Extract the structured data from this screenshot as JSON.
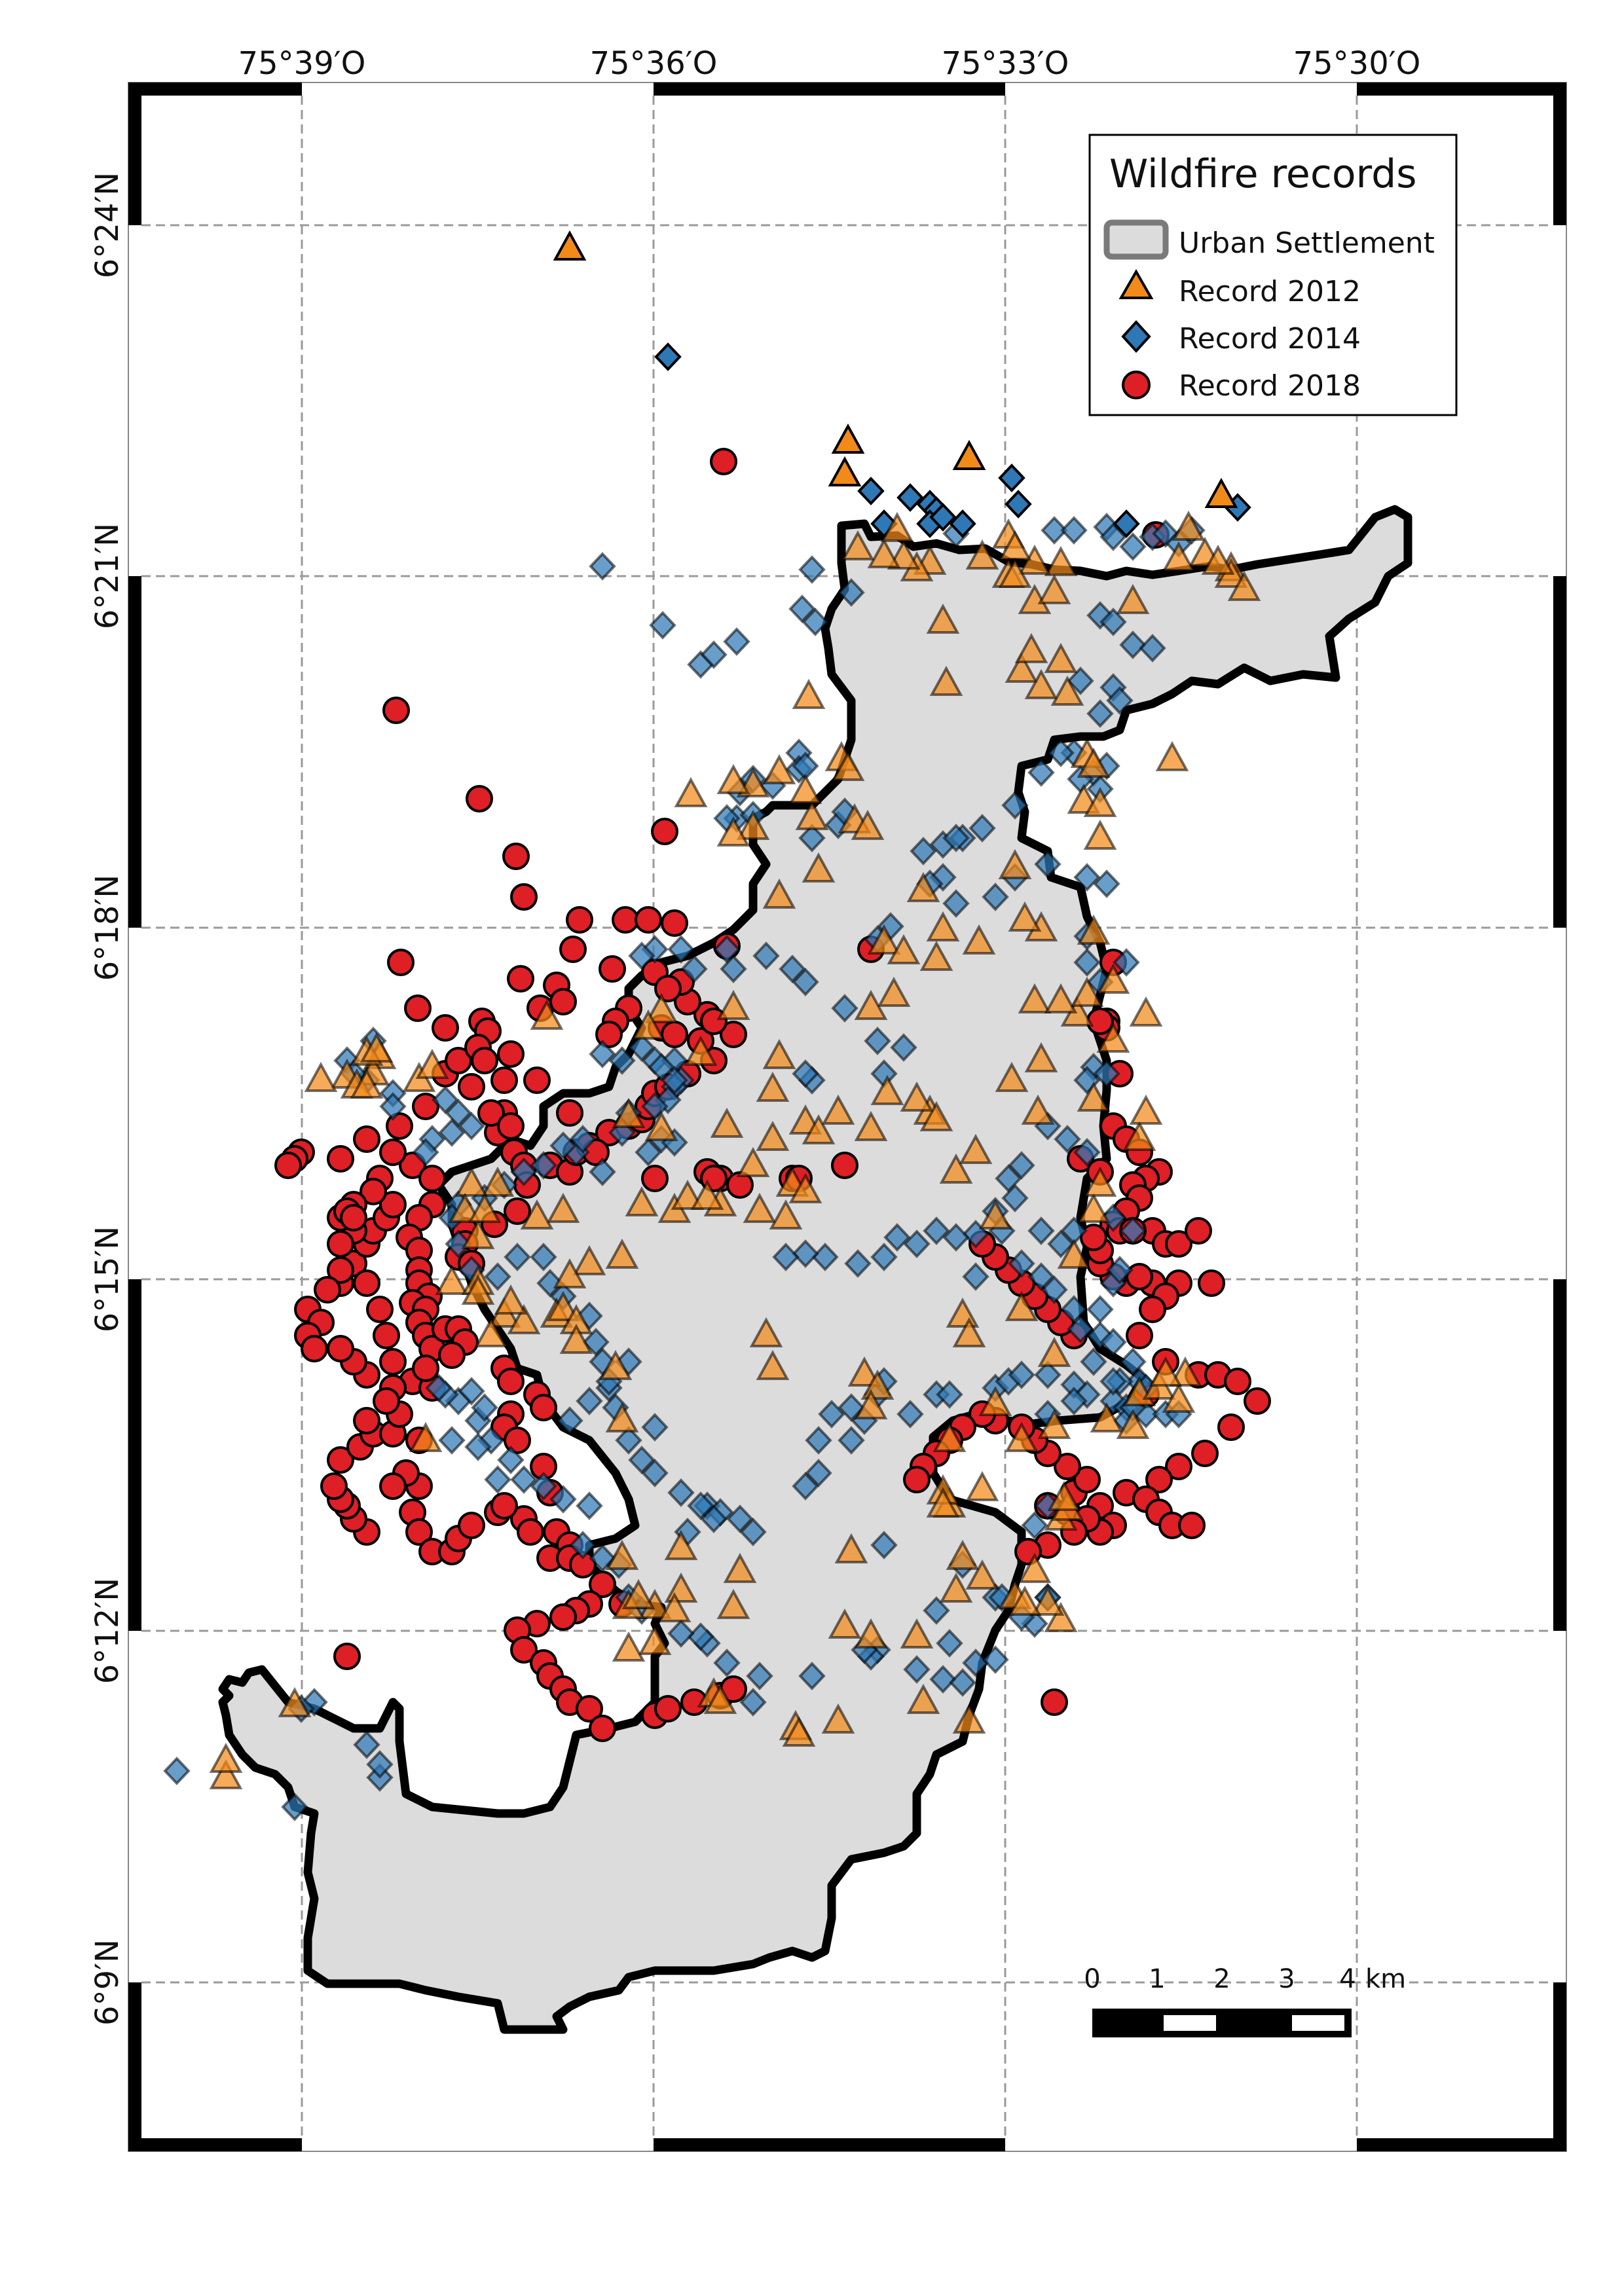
{
  "map": {
    "lon_labels": [
      "75°39′O",
      "75°36′O",
      "75°33′O",
      "75°30′O"
    ],
    "lat_labels": [
      "6°24′N",
      "6°21′N",
      "6°18′N",
      "6°15′N",
      "6°12′N",
      "6°9′N"
    ]
  },
  "legend": {
    "title": "Wildfire records",
    "items": [
      {
        "label": "Urban Settlement",
        "color": "#dcdcdc"
      },
      {
        "label": "Record 2012",
        "color": "#f28a1a"
      },
      {
        "label": "Record 2014",
        "color": "#2f78b6"
      },
      {
        "label": "Record 2018",
        "color": "#de1f26"
      }
    ]
  },
  "scalebar": {
    "ticks": [
      "0",
      "1",
      "2",
      "3",
      "4"
    ],
    "unit": "km"
  },
  "colors": {
    "urban_fill": "#dcdcdc",
    "record_2012": "#f28a1a",
    "record_2014": "#2f78b6",
    "record_2018": "#de1f26",
    "grid": "#9a9a9a",
    "outline": "#000000"
  }
}
